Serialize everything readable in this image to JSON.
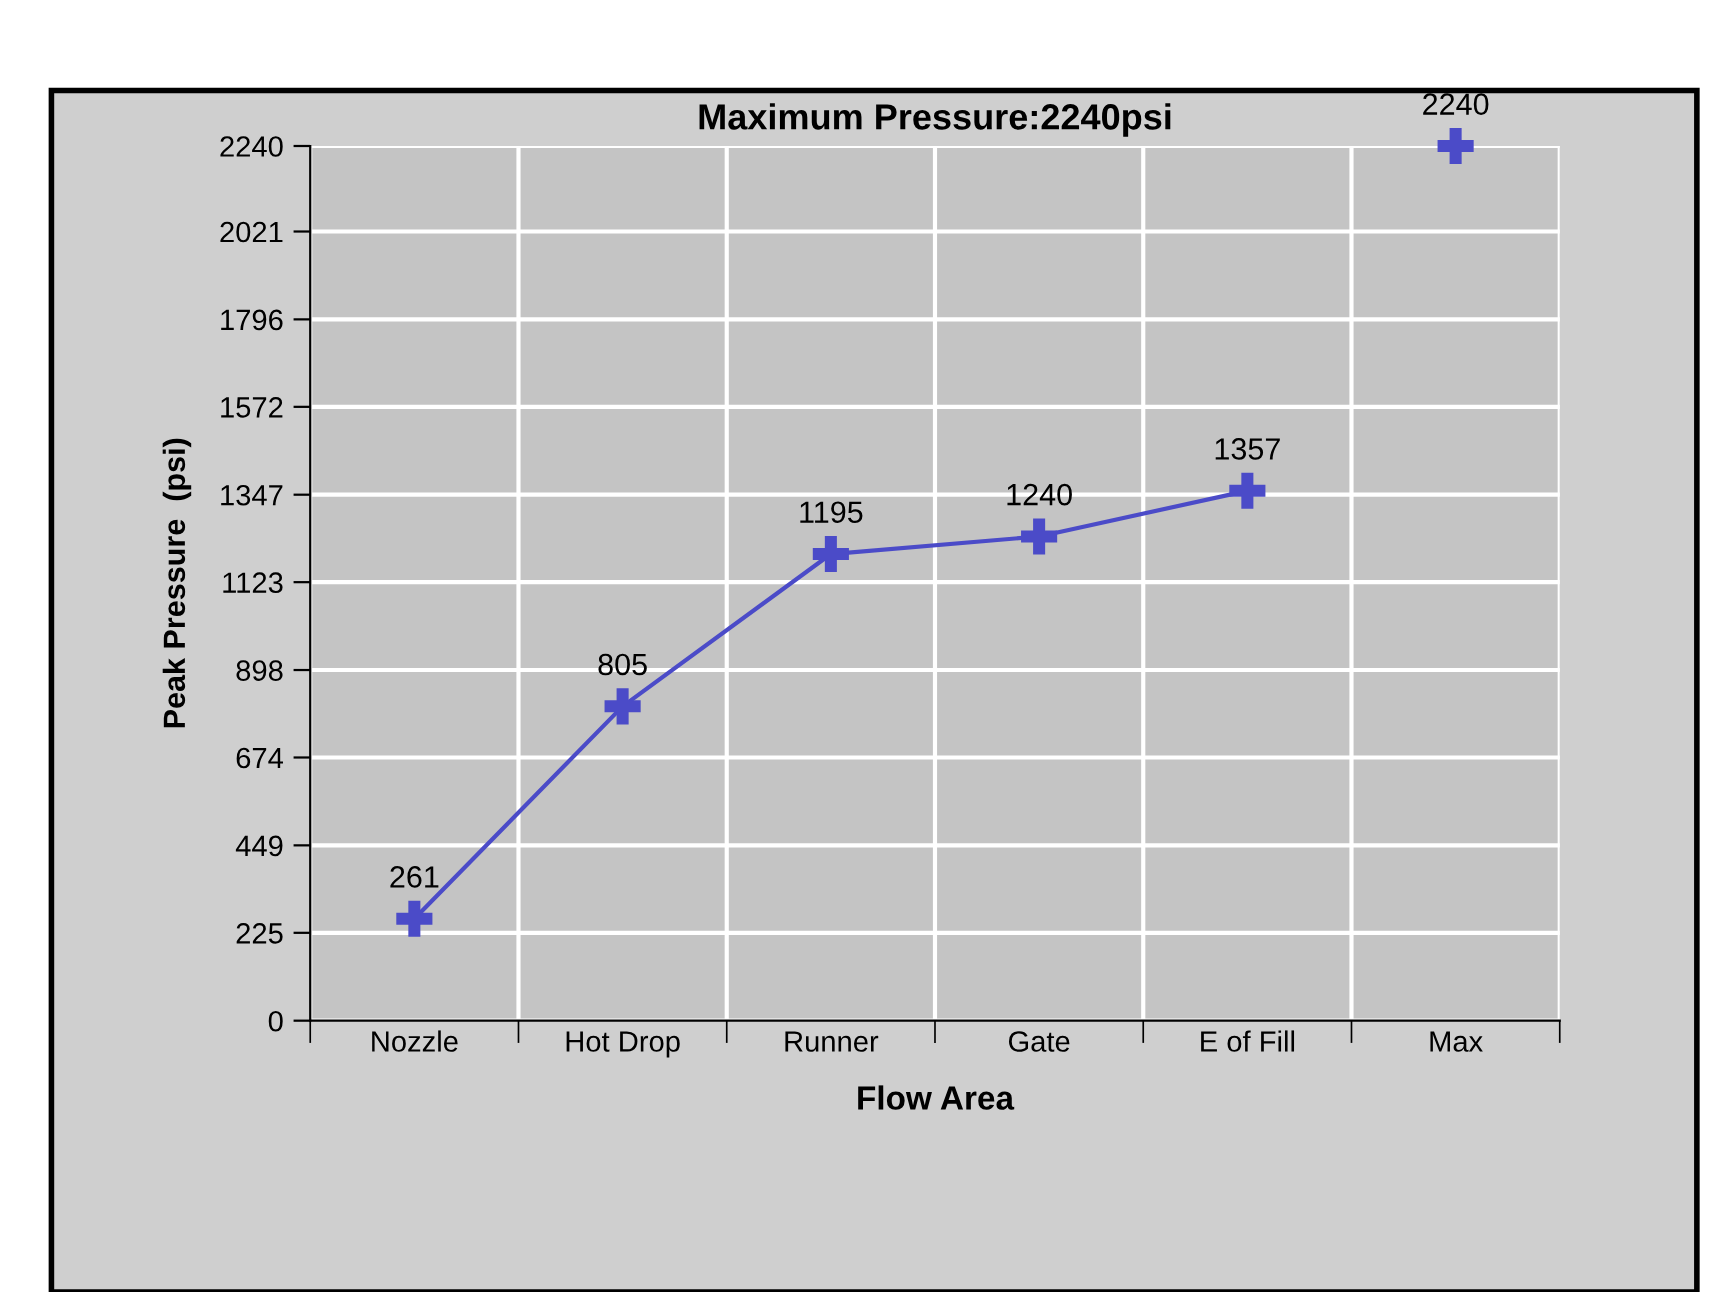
{
  "chart_data": {
    "type": "line",
    "title": "Maximum Pressure:2240psi",
    "xlabel": "Flow Area",
    "ylabel": "Peak Pressure  (psi)",
    "categories": [
      "Nozzle",
      "Hot Drop",
      "Runner",
      "Gate",
      "E of Fill",
      "Max"
    ],
    "series": [
      {
        "color": "#4b4bc8",
        "values": [
          261,
          805,
          1195,
          1240,
          1357,
          null
        ]
      },
      {
        "type": "scatter",
        "color": "#4b4bc8",
        "values": [
          null,
          null,
          null,
          null,
          null,
          2240
        ]
      }
    ],
    "ylim": [
      0,
      2240
    ],
    "yticks": [
      0,
      225,
      449,
      674,
      898,
      1123,
      1347,
      1572,
      1796,
      2021,
      2240
    ],
    "grid": true,
    "marker": "cross",
    "line_style": "solid",
    "data_labels": true
  }
}
